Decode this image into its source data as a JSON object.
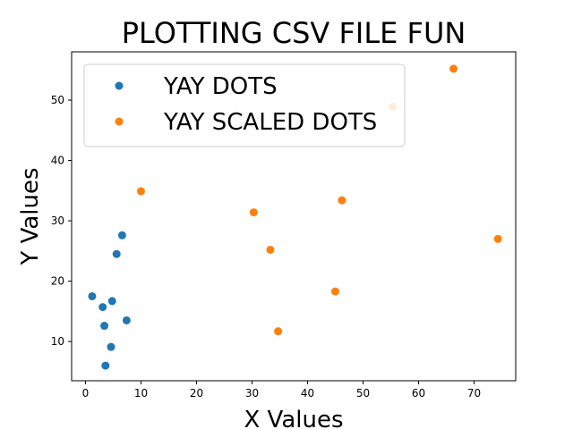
{
  "chart_data": {
    "type": "scatter",
    "title": "PLOTTING CSV FILE FUN",
    "xlabel": "X Values",
    "ylabel": "Y Values",
    "xlim": [
      -2.5,
      77.5
    ],
    "ylim": [
      3.5,
      58
    ],
    "xticks": [
      0,
      10,
      20,
      30,
      40,
      50,
      60,
      70
    ],
    "yticks": [
      10,
      20,
      30,
      40,
      50
    ],
    "grid": false,
    "legend_position": "upper-left",
    "series": [
      {
        "name": "YAY DOTS",
        "color": "#1f77b4",
        "points": [
          {
            "x": 1.2,
            "y": 17.5
          },
          {
            "x": 3.1,
            "y": 15.7
          },
          {
            "x": 3.4,
            "y": 12.6
          },
          {
            "x": 3.6,
            "y": 6.0
          },
          {
            "x": 4.6,
            "y": 9.1
          },
          {
            "x": 4.8,
            "y": 16.7
          },
          {
            "x": 5.6,
            "y": 24.5
          },
          {
            "x": 6.6,
            "y": 27.6
          },
          {
            "x": 7.4,
            "y": 13.5
          }
        ]
      },
      {
        "name": "YAY SCALED DOTS",
        "color": "#ff7f0e",
        "points": [
          {
            "x": 10.0,
            "y": 34.9
          },
          {
            "x": 30.3,
            "y": 31.4
          },
          {
            "x": 33.3,
            "y": 25.2
          },
          {
            "x": 34.7,
            "y": 11.7
          },
          {
            "x": 45.0,
            "y": 18.3
          },
          {
            "x": 46.2,
            "y": 33.4
          },
          {
            "x": 55.3,
            "y": 48.9
          },
          {
            "x": 66.3,
            "y": 55.2
          },
          {
            "x": 74.3,
            "y": 27.0
          }
        ]
      }
    ]
  }
}
